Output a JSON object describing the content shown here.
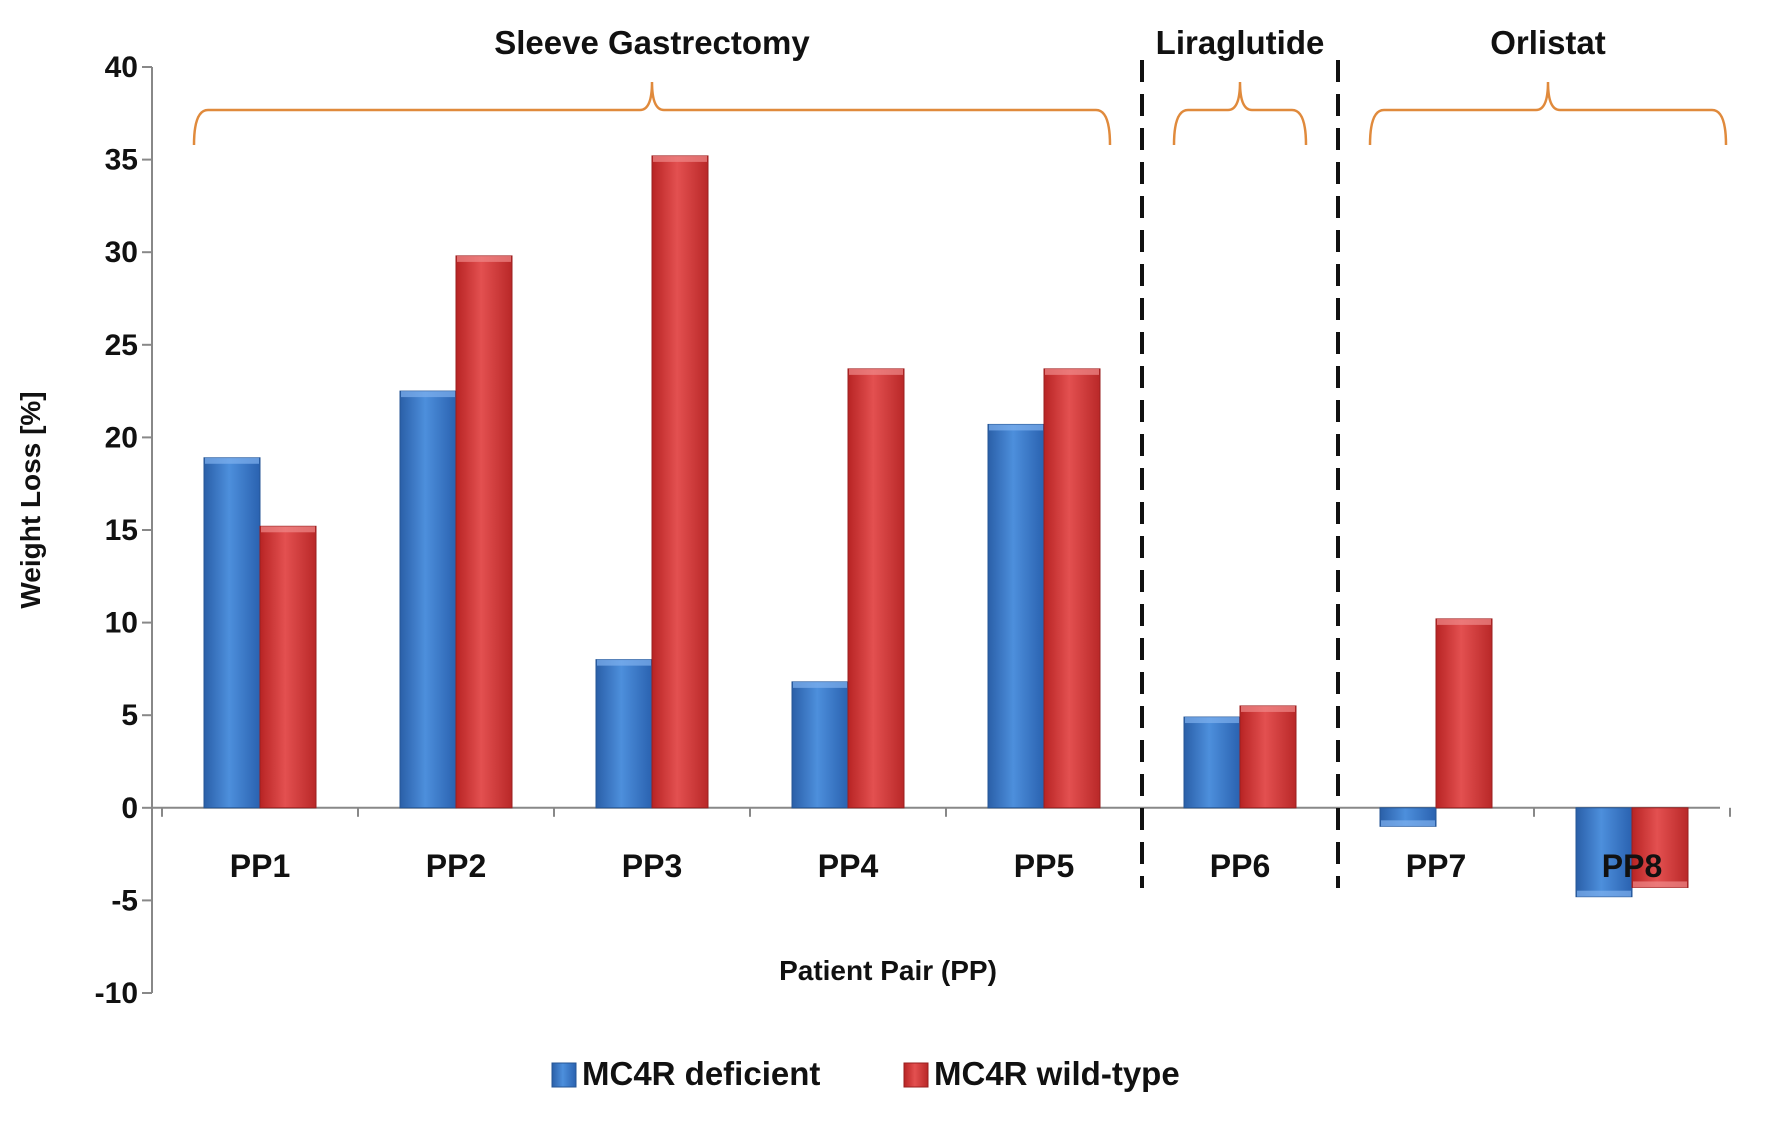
{
  "chart_data": {
    "type": "bar",
    "title": "",
    "xlabel": "Patient Pair (PP)",
    "ylabel": "Weight Loss [%]",
    "ylim": [
      -10,
      40
    ],
    "yticks": [
      40,
      35,
      30,
      25,
      20,
      15,
      10,
      5,
      0,
      -5,
      -10
    ],
    "categories": [
      "PP1",
      "PP2",
      "PP3",
      "PP4",
      "PP5",
      "PP6",
      "PP7",
      "PP8"
    ],
    "series": [
      {
        "name": "MC4R deficient",
        "color": "#3b78c9",
        "values": [
          18.9,
          22.5,
          8.0,
          6.8,
          20.7,
          4.9,
          -1.0,
          -4.8
        ]
      },
      {
        "name": "MC4R wild-type",
        "color": "#d83a3a",
        "values": [
          15.2,
          29.8,
          35.2,
          23.7,
          23.7,
          5.5,
          10.2,
          -4.3
        ]
      }
    ],
    "groups": [
      {
        "label": "Sleeve Gastrectomy",
        "categories": [
          "PP1",
          "PP2",
          "PP3",
          "PP4",
          "PP5"
        ]
      },
      {
        "label": "Liraglutide",
        "categories": [
          "PP6"
        ]
      },
      {
        "label": "Orlistat",
        "categories": [
          "PP7",
          "PP8"
        ]
      }
    ],
    "legend": {
      "position": "bottom-center",
      "entries": [
        "MC4R deficient",
        "MC4R wild-type"
      ]
    },
    "grid": false
  }
}
